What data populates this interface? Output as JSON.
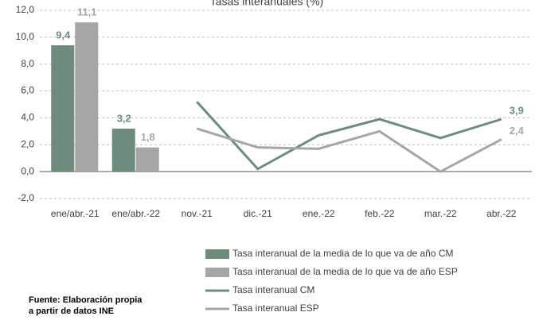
{
  "chart_data": {
    "type": "combo",
    "title": "Tasas interanuales (%)",
    "categories": [
      "ene/abr.-21",
      "ene/abr.-22",
      "nov.-21",
      "dic.-21",
      "ene.-22",
      "feb.-22",
      "mar.-22",
      "abr.-22"
    ],
    "series": [
      {
        "name": "Tasa interanual de la media de lo que va de año CM",
        "type": "bar",
        "color": "#6e8b7d",
        "values": [
          9.4,
          3.2,
          null,
          null,
          null,
          null,
          null,
          null
        ],
        "value_labels": [
          "9,4",
          "3,2",
          null,
          null,
          null,
          null,
          null,
          null
        ]
      },
      {
        "name": "Tasa interanual de la media de lo que va de año ESP",
        "type": "bar",
        "color": "#a6a6a6",
        "values": [
          11.1,
          1.8,
          null,
          null,
          null,
          null,
          null,
          null
        ],
        "value_labels": [
          "11,1",
          "1,8",
          null,
          null,
          null,
          null,
          null,
          null
        ]
      },
      {
        "name": "Tasa interanual CM",
        "type": "line",
        "color": "#6e8b7d",
        "values": [
          null,
          null,
          5.2,
          0.2,
          2.7,
          3.9,
          2.5,
          3.9
        ],
        "value_labels": [
          null,
          null,
          null,
          null,
          null,
          null,
          null,
          "3,9"
        ]
      },
      {
        "name": "Tasa interanual ESP",
        "type": "line",
        "color": "#a6a6a6",
        "values": [
          null,
          null,
          3.2,
          1.8,
          1.7,
          3.0,
          0.0,
          2.4
        ],
        "value_labels": [
          null,
          null,
          null,
          null,
          null,
          null,
          null,
          "2,4"
        ]
      }
    ],
    "ylim": [
      -2,
      12
    ],
    "yticks": [
      {
        "value": -2,
        "label": "-2,0"
      },
      {
        "value": 0,
        "label": "0,0"
      },
      {
        "value": 2,
        "label": "2,0"
      },
      {
        "value": 4,
        "label": "4,0"
      },
      {
        "value": 6,
        "label": "6,0"
      },
      {
        "value": 8,
        "label": "8,0"
      },
      {
        "value": 10,
        "label": "10,0"
      },
      {
        "value": 12,
        "label": "12,0"
      }
    ],
    "grid": true,
    "source": [
      "Fuente: Elaboración propia",
      "a partir de datos INE"
    ]
  }
}
